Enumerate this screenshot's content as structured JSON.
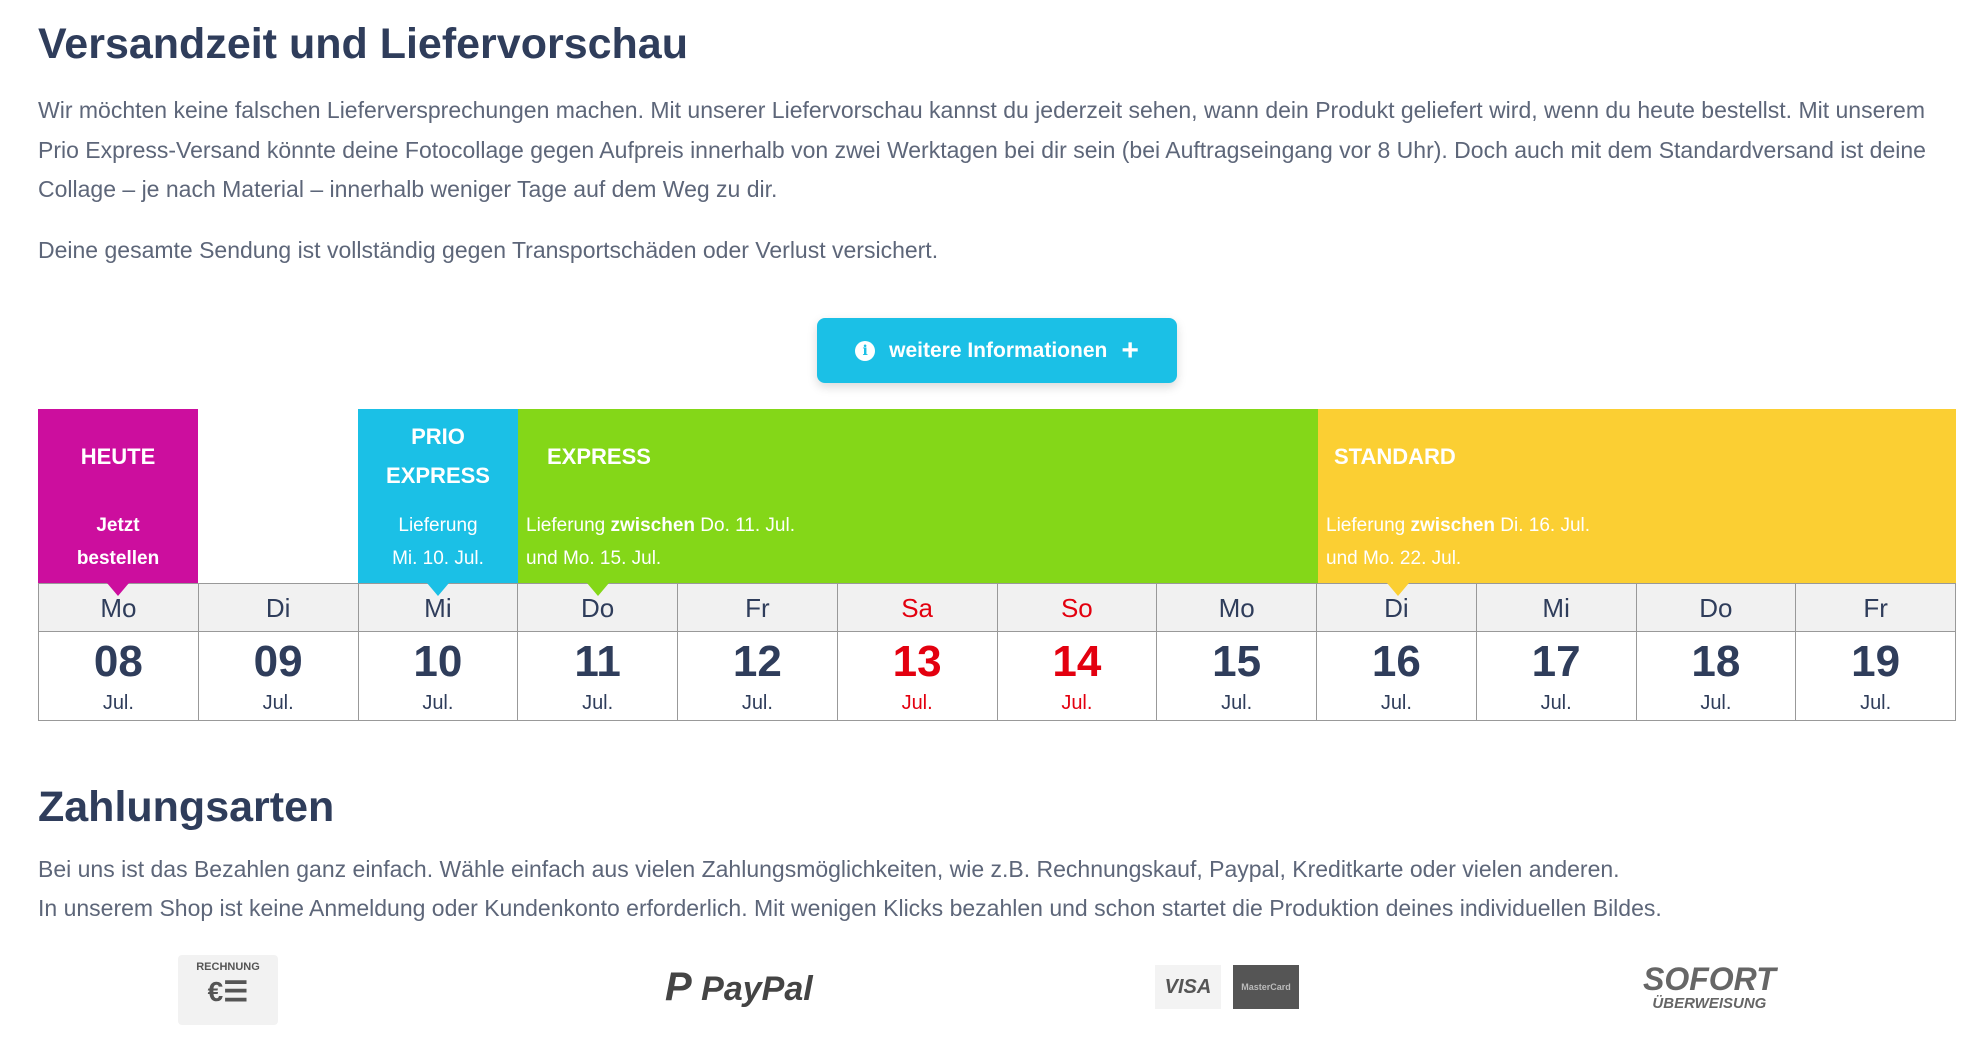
{
  "shipping": {
    "title": "Versandzeit und Liefervorschau",
    "paragraph1": "Wir möchten keine falschen Lieferversprechungen machen. Mit unserer Liefervorschau kannst du jederzeit sehen, wann dein Produkt geliefert wird, wenn du heute bestellst. Mit unserem Prio Express-Versand könnte deine Fotocollage gegen Aufpreis innerhalb von zwei Werktagen bei dir sein (bei Auftragseingang vor 8 Uhr). Doch auch mit dem Standardversand ist deine Collage – je nach Material – innerhalb weniger Tage auf dem Weg zu dir.",
    "paragraph2": "Deine gesamte Sendung ist vollständig gegen Transportschäden oder Verlust versichert.",
    "info_button": "weitere Informationen",
    "bands": {
      "today": {
        "title": "HEUTE",
        "line1": "Jetzt",
        "line2": "bestellen",
        "color": "#cc0e9e"
      },
      "prio": {
        "title1": "PRIO",
        "title2": "EXPRESS",
        "line1": "Lieferung",
        "line2": "Mi. 10. Jul.",
        "color": "#1bc0e6"
      },
      "express": {
        "title": "EXPRESS",
        "pre": "Lieferung ",
        "bold": "zwischen",
        "post": " Do. 11. Jul.",
        "line2": "und Mo. 15. Jul.",
        "color": "#84d718"
      },
      "standard": {
        "title": "STANDARD",
        "pre": "Lieferung ",
        "bold": "zwischen",
        "post": " Di. 16. Jul.",
        "line2": "und Mo. 22. Jul.",
        "color": "#fbcf33"
      }
    },
    "days": [
      {
        "wd": "Mo",
        "d": "08",
        "m": "Jul.",
        "weekend": false
      },
      {
        "wd": "Di",
        "d": "09",
        "m": "Jul.",
        "weekend": false
      },
      {
        "wd": "Mi",
        "d": "10",
        "m": "Jul.",
        "weekend": false
      },
      {
        "wd": "Do",
        "d": "11",
        "m": "Jul.",
        "weekend": false
      },
      {
        "wd": "Fr",
        "d": "12",
        "m": "Jul.",
        "weekend": false
      },
      {
        "wd": "Sa",
        "d": "13",
        "m": "Jul.",
        "weekend": true
      },
      {
        "wd": "So",
        "d": "14",
        "m": "Jul.",
        "weekend": true
      },
      {
        "wd": "Mo",
        "d": "15",
        "m": "Jul.",
        "weekend": false
      },
      {
        "wd": "Di",
        "d": "16",
        "m": "Jul.",
        "weekend": false
      },
      {
        "wd": "Mi",
        "d": "17",
        "m": "Jul.",
        "weekend": false
      },
      {
        "wd": "Do",
        "d": "18",
        "m": "Jul.",
        "weekend": false
      },
      {
        "wd": "Fr",
        "d": "19",
        "m": "Jul.",
        "weekend": false
      }
    ]
  },
  "payment": {
    "title": "Zahlungsarten",
    "line1": "Bei uns ist das Bezahlen ganz einfach. Wähle einfach aus vielen Zahlungsmöglichkeiten, wie z.B. Rechnungskauf, Paypal, Kreditkarte oder vielen anderen.",
    "line2": "In unserem Shop ist keine Anmeldung oder Kundenkonto erforderlich. Mit wenigen Klicks bezahlen und schon startet die Produktion deines individuellen Bildes.",
    "logos": {
      "rechnung": "RECHNUNG",
      "paypal": "PayPal",
      "visa": "VISA",
      "mastercard": "MasterCard",
      "sofort": "SOFORT",
      "ueberweisung": "ÜBERWEISUNG"
    }
  }
}
